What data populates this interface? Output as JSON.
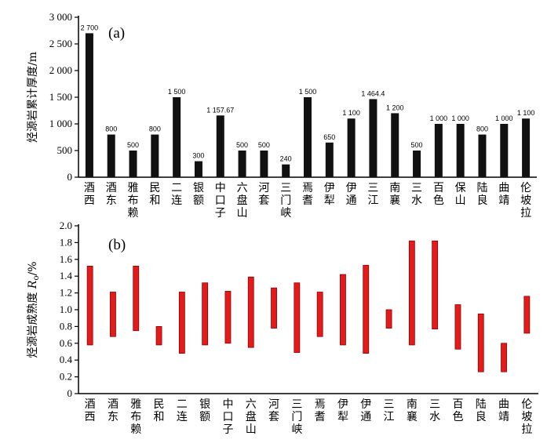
{
  "chart_data": [
    {
      "type": "bar",
      "panel_label": "(a)",
      "ylabel": "烃源岩累计厚度/m",
      "ylim": [
        0,
        3000
      ],
      "yticks": [
        0,
        500,
        1000,
        1500,
        2000,
        2500,
        3000
      ],
      "ytick_labels": [
        "0",
        "500",
        "1 000",
        "1 500",
        "2 000",
        "2 500",
        "3 000"
      ],
      "categories": [
        "酒西",
        "酒东",
        "雅布赖",
        "民和",
        "二连",
        "银额",
        "中口子",
        "六盘山",
        "河套",
        "三门峡",
        "焉耆",
        "伊犁",
        "伊通",
        "三江",
        "南襄",
        "三水",
        "百色",
        "保山",
        "陆良",
        "曲靖",
        "伦坡拉"
      ],
      "values": [
        2700,
        800,
        500,
        800,
        1500,
        300,
        1157.67,
        500,
        500,
        240,
        1500,
        650,
        1100,
        1464.4,
        1200,
        500,
        1000,
        1000,
        800,
        1000,
        1100
      ],
      "value_labels": [
        "2 700",
        "800",
        "500",
        "800",
        "1 500",
        "300",
        "1 157.67",
        "500",
        "500",
        "240",
        "1 500",
        "650",
        "1 100",
        "1 464.4",
        "1 200",
        "500",
        "1 000",
        "1 000",
        "800",
        "1 000",
        "1 100"
      ],
      "bar_color": "#111111"
    },
    {
      "type": "range-bar",
      "panel_label": "(b)",
      "ylabel_prefix": "烃源岩成熟度 ",
      "ylabel_symbol": "R",
      "ylabel_sub": "o",
      "ylabel_suffix": "/%",
      "ylim": [
        0,
        2.0
      ],
      "yticks": [
        0,
        0.2,
        0.4,
        0.6,
        0.8,
        1.0,
        1.2,
        1.4,
        1.6,
        1.8,
        2.0
      ],
      "ytick_labels": [
        "0",
        "0.2",
        "0.4",
        "0.6",
        "0.8",
        "1.0",
        "1.2",
        "1.4",
        "1.6",
        "1.8",
        "2.0"
      ],
      "categories": [
        "酒西",
        "酒东",
        "雅布赖",
        "民和",
        "二连",
        "银额",
        "中口子",
        "六盘山",
        "河套",
        "三门峡",
        "焉耆",
        "伊犁",
        "伊通",
        "三江",
        "南襄",
        "三水",
        "百色",
        "陆良",
        "曲靖",
        "伦坡拉"
      ],
      "ranges": [
        [
          0.58,
          1.52
        ],
        [
          0.68,
          1.21
        ],
        [
          0.75,
          1.52
        ],
        [
          0.58,
          0.8
        ],
        [
          0.48,
          1.21
        ],
        [
          0.58,
          1.32
        ],
        [
          0.6,
          1.22
        ],
        [
          0.55,
          1.39
        ],
        [
          0.78,
          1.26
        ],
        [
          0.49,
          1.32
        ],
        [
          0.68,
          1.21
        ],
        [
          0.58,
          1.42
        ],
        [
          0.48,
          1.53
        ],
        [
          0.78,
          1.0
        ],
        [
          0.58,
          1.82
        ],
        [
          0.77,
          1.82
        ],
        [
          0.53,
          1.06
        ],
        [
          0.26,
          0.95
        ],
        [
          0.26,
          0.6
        ],
        [
          0.72,
          1.16
        ]
      ],
      "bar_fill": "#e51b1b",
      "bar_stroke": "#8b0000"
    }
  ]
}
